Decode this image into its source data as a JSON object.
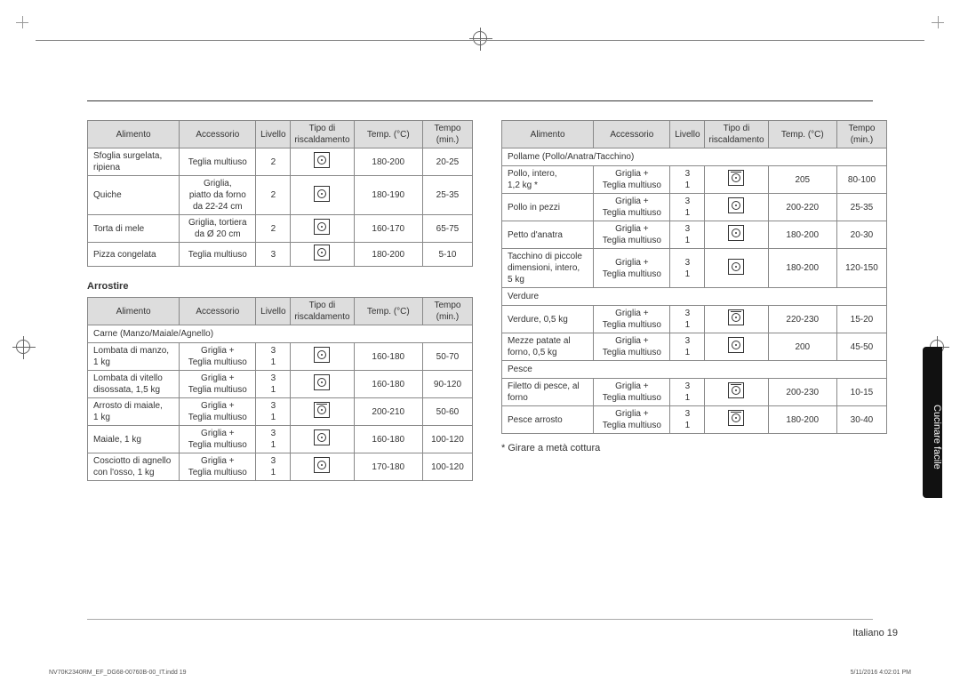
{
  "headers": {
    "alimento": "Alimento",
    "accessorio": "Accessorio",
    "livello": "Livello",
    "tipo": "Tipo di\nriscaldamento",
    "temp": "Temp. (°C)",
    "tempo": "Tempo\n(min.)"
  },
  "table1": {
    "rows": [
      {
        "alimento": "Sfoglia surgelata, ripiena",
        "accessorio": "Teglia multiuso",
        "livello": "2",
        "icon": "fan",
        "temp": "180-200",
        "tempo": "20-25"
      },
      {
        "alimento": "Quiche",
        "accessorio": "Griglia,\npiatto da forno\nda 22-24 cm",
        "livello": "2",
        "icon": "fan",
        "temp": "180-190",
        "tempo": "25-35"
      },
      {
        "alimento": "Torta di mele",
        "accessorio": "Griglia, tortiera\nda Ø 20 cm",
        "livello": "2",
        "icon": "fan",
        "temp": "160-170",
        "tempo": "65-75"
      },
      {
        "alimento": "Pizza congelata",
        "accessorio": "Teglia multiuso",
        "livello": "3",
        "icon": "fan",
        "temp": "180-200",
        "tempo": "5-10"
      }
    ]
  },
  "subheading": "Arrostire",
  "table2": {
    "section": "Carne (Manzo/Maiale/Agnello)",
    "rows": [
      {
        "alimento": "Lombata di manzo,\n1 kg",
        "accessorio": "Griglia +\nTeglia multiuso",
        "livello": "3\n1",
        "icon": "fan",
        "temp": "160-180",
        "tempo": "50-70"
      },
      {
        "alimento": "Lombata di vitello\ndisossata, 1,5 kg",
        "accessorio": "Griglia +\nTeglia multiuso",
        "livello": "3\n1",
        "icon": "fan",
        "temp": "160-180",
        "tempo": "90-120"
      },
      {
        "alimento": "Arrosto di maiale,\n1 kg",
        "accessorio": "Griglia +\nTeglia multiuso",
        "livello": "3\n1",
        "icon": "fan_top",
        "temp": "200-210",
        "tempo": "50-60"
      },
      {
        "alimento": "Maiale, 1 kg",
        "accessorio": "Griglia +\nTeglia multiuso",
        "livello": "3\n1",
        "icon": "fan",
        "temp": "160-180",
        "tempo": "100-120"
      },
      {
        "alimento": "Cosciotto di agnello\ncon l'osso, 1 kg",
        "accessorio": "Griglia +\nTeglia multiuso",
        "livello": "3\n1",
        "icon": "fan",
        "temp": "170-180",
        "tempo": "100-120"
      }
    ]
  },
  "table3": {
    "groups": [
      {
        "section": "Pollame (Pollo/Anatra/Tacchino)",
        "rows": [
          {
            "alimento": "Pollo, intero,\n1,2 kg *",
            "accessorio": "Griglia +\nTeglia multiuso",
            "livello": "3\n1",
            "icon": "fan_top",
            "temp": "205",
            "tempo": "80-100"
          },
          {
            "alimento": "Pollo in pezzi",
            "accessorio": "Griglia +\nTeglia multiuso",
            "livello": "3\n1",
            "icon": "fan",
            "temp": "200-220",
            "tempo": "25-35"
          },
          {
            "alimento": "Petto d'anatra",
            "accessorio": "Griglia +\nTeglia multiuso",
            "livello": "3\n1",
            "icon": "fan",
            "temp": "180-200",
            "tempo": "20-30"
          },
          {
            "alimento": "Tacchino di piccole\ndimensioni, intero,\n5 kg",
            "accessorio": "Griglia +\nTeglia multiuso",
            "livello": "3\n1",
            "icon": "fan",
            "temp": "180-200",
            "tempo": "120-150"
          }
        ]
      },
      {
        "section": "Verdure",
        "rows": [
          {
            "alimento": "Verdure, 0,5 kg",
            "accessorio": "Griglia +\nTeglia multiuso",
            "livello": "3\n1",
            "icon": "fan_top",
            "temp": "220-230",
            "tempo": "15-20"
          },
          {
            "alimento": "Mezze patate al\nforno, 0,5 kg",
            "accessorio": "Griglia +\nTeglia multiuso",
            "livello": "3\n1",
            "icon": "fan",
            "temp": "200",
            "tempo": "45-50"
          }
        ]
      },
      {
        "section": "Pesce",
        "rows": [
          {
            "alimento": "Filetto di pesce, al\nforno",
            "accessorio": "Griglia +\nTeglia multiuso",
            "livello": "3\n1",
            "icon": "fan_top",
            "temp": "200-230",
            "tempo": "10-15"
          },
          {
            "alimento": "Pesce arrosto",
            "accessorio": "Griglia +\nTeglia multiuso",
            "livello": "3\n1",
            "icon": "fan_top",
            "temp": "180-200",
            "tempo": "30-40"
          }
        ]
      }
    ]
  },
  "note": "* Girare a metà cottura",
  "side_tab": "Cucinare facile",
  "footer": {
    "lang_page": "Italiano  19",
    "file": "NV70K2340RM_EF_DG68-00760B-00_IT.indd   19",
    "date": "5/11/2016   4:02:01 PM"
  },
  "colors": {
    "header_bg": "#dddddd",
    "border": "#888888",
    "text": "#333333",
    "tab_bg": "#111111"
  }
}
